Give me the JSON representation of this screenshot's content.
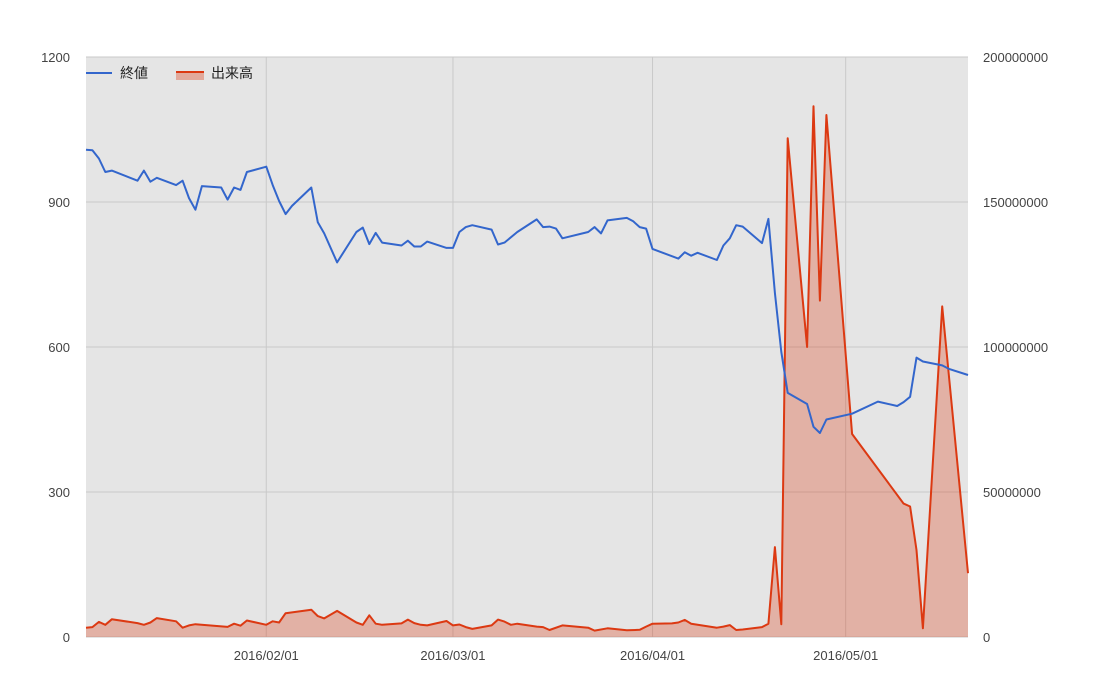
{
  "chart_data": {
    "type": "line",
    "x_axis": {
      "type": "date",
      "range": [
        "2016-01-04",
        "2016-05-20"
      ],
      "tick_labels": [
        "2016/02/01",
        "2016/03/01",
        "2016/04/01",
        "2016/05/01"
      ],
      "tick_values": [
        "2016-02-01",
        "2016-03-01",
        "2016-04-01",
        "2016-05-01"
      ],
      "grid": true
    },
    "y_axis_left": {
      "range": [
        0,
        1200
      ],
      "tick_values": [
        0,
        300,
        600,
        900,
        1200
      ],
      "tick_labels": [
        "0",
        "300",
        "600",
        "900",
        "1200"
      ],
      "grid": true
    },
    "y_axis_right": {
      "range": [
        0,
        200000000
      ],
      "tick_values": [
        0,
        50000000,
        100000000,
        150000000,
        200000000
      ],
      "tick_labels": [
        "0",
        "50000000",
        "100000000",
        "150000000",
        "200000000"
      ]
    },
    "legend": {
      "position": "top-left"
    },
    "plot_background": "#e5e5e5",
    "series": [
      {
        "name": "終値",
        "type": "line",
        "axis": "left",
        "color": "#3366cc",
        "points": [
          [
            "2016-01-04",
            1008
          ],
          [
            "2016-01-05",
            1007
          ],
          [
            "2016-01-06",
            990
          ],
          [
            "2016-01-07",
            962
          ],
          [
            "2016-01-08",
            965
          ],
          [
            "2016-01-12",
            944
          ],
          [
            "2016-01-13",
            965
          ],
          [
            "2016-01-14",
            942
          ],
          [
            "2016-01-15",
            950
          ],
          [
            "2016-01-18",
            935
          ],
          [
            "2016-01-19",
            944
          ],
          [
            "2016-01-20",
            908
          ],
          [
            "2016-01-21",
            884
          ],
          [
            "2016-01-22",
            933
          ],
          [
            "2016-01-25",
            930
          ],
          [
            "2016-01-26",
            905
          ],
          [
            "2016-01-27",
            930
          ],
          [
            "2016-01-28",
            925
          ],
          [
            "2016-01-29",
            962
          ],
          [
            "2016-02-01",
            973
          ],
          [
            "2016-02-02",
            935
          ],
          [
            "2016-02-03",
            902
          ],
          [
            "2016-02-04",
            875
          ],
          [
            "2016-02-05",
            892
          ],
          [
            "2016-02-08",
            930
          ],
          [
            "2016-02-09",
            858
          ],
          [
            "2016-02-10",
            835
          ],
          [
            "2016-02-12",
            775
          ],
          [
            "2016-02-15",
            838
          ],
          [
            "2016-02-16",
            847
          ],
          [
            "2016-02-17",
            813
          ],
          [
            "2016-02-18",
            836
          ],
          [
            "2016-02-19",
            816
          ],
          [
            "2016-02-22",
            810
          ],
          [
            "2016-02-23",
            820
          ],
          [
            "2016-02-24",
            808
          ],
          [
            "2016-02-25",
            808
          ],
          [
            "2016-02-26",
            818
          ],
          [
            "2016-02-29",
            805
          ],
          [
            "2016-03-01",
            805
          ],
          [
            "2016-03-02",
            838
          ],
          [
            "2016-03-03",
            848
          ],
          [
            "2016-03-04",
            852
          ],
          [
            "2016-03-07",
            843
          ],
          [
            "2016-03-08",
            812
          ],
          [
            "2016-03-09",
            816
          ],
          [
            "2016-03-11",
            838
          ],
          [
            "2016-03-14",
            864
          ],
          [
            "2016-03-15",
            848
          ],
          [
            "2016-03-16",
            849
          ],
          [
            "2016-03-17",
            845
          ],
          [
            "2016-03-18",
            825
          ],
          [
            "2016-03-22",
            838
          ],
          [
            "2016-03-23",
            848
          ],
          [
            "2016-03-24",
            835
          ],
          [
            "2016-03-25",
            862
          ],
          [
            "2016-03-28",
            867
          ],
          [
            "2016-03-29",
            860
          ],
          [
            "2016-03-30",
            848
          ],
          [
            "2016-03-31",
            845
          ],
          [
            "2016-04-01",
            803
          ],
          [
            "2016-04-05",
            783
          ],
          [
            "2016-04-06",
            796
          ],
          [
            "2016-04-07",
            789
          ],
          [
            "2016-04-08",
            795
          ],
          [
            "2016-04-11",
            780
          ],
          [
            "2016-04-12",
            810
          ],
          [
            "2016-04-13",
            825
          ],
          [
            "2016-04-14",
            852
          ],
          [
            "2016-04-15",
            849
          ],
          [
            "2016-04-18",
            815
          ],
          [
            "2016-04-19",
            865
          ],
          [
            "2016-04-20",
            712
          ],
          [
            "2016-04-21",
            590
          ],
          [
            "2016-04-22",
            505
          ],
          [
            "2016-04-25",
            482
          ],
          [
            "2016-04-26",
            435
          ],
          [
            "2016-04-27",
            422
          ],
          [
            "2016-04-28",
            450
          ],
          [
            "2016-05-02",
            462
          ],
          [
            "2016-05-06",
            487
          ],
          [
            "2016-05-09",
            478
          ],
          [
            "2016-05-10",
            486
          ],
          [
            "2016-05-11",
            497
          ],
          [
            "2016-05-12",
            578
          ],
          [
            "2016-05-13",
            570
          ],
          [
            "2016-05-16",
            562
          ],
          [
            "2016-05-17",
            555
          ],
          [
            "2016-05-20",
            542
          ]
        ]
      },
      {
        "name": "出来高",
        "type": "area",
        "axis": "right",
        "color": "#dc3912",
        "points": [
          [
            "2016-01-04",
            3200000
          ],
          [
            "2016-01-05",
            3400000
          ],
          [
            "2016-01-06",
            5200000
          ],
          [
            "2016-01-07",
            4200000
          ],
          [
            "2016-01-08",
            6100000
          ],
          [
            "2016-01-12",
            4800000
          ],
          [
            "2016-01-13",
            4200000
          ],
          [
            "2016-01-14",
            5000000
          ],
          [
            "2016-01-15",
            6500000
          ],
          [
            "2016-01-18",
            5400000
          ],
          [
            "2016-01-19",
            3200000
          ],
          [
            "2016-01-20",
            4000000
          ],
          [
            "2016-01-21",
            4400000
          ],
          [
            "2016-01-26",
            3500000
          ],
          [
            "2016-01-27",
            4600000
          ],
          [
            "2016-01-28",
            3900000
          ],
          [
            "2016-01-29",
            5700000
          ],
          [
            "2016-02-01",
            4200000
          ],
          [
            "2016-02-02",
            5400000
          ],
          [
            "2016-02-03",
            5000000
          ],
          [
            "2016-02-04",
            8200000
          ],
          [
            "2016-02-08",
            9400000
          ],
          [
            "2016-02-09",
            7200000
          ],
          [
            "2016-02-10",
            6400000
          ],
          [
            "2016-02-12",
            9000000
          ],
          [
            "2016-02-15",
            5000000
          ],
          [
            "2016-02-16",
            4200000
          ],
          [
            "2016-02-17",
            7500000
          ],
          [
            "2016-02-18",
            4600000
          ],
          [
            "2016-02-19",
            4200000
          ],
          [
            "2016-02-22",
            4700000
          ],
          [
            "2016-02-23",
            6000000
          ],
          [
            "2016-02-24",
            4800000
          ],
          [
            "2016-02-25",
            4200000
          ],
          [
            "2016-02-26",
            4000000
          ],
          [
            "2016-02-29",
            5500000
          ],
          [
            "2016-03-01",
            4000000
          ],
          [
            "2016-03-02",
            4300000
          ],
          [
            "2016-03-03",
            3400000
          ],
          [
            "2016-03-04",
            2800000
          ],
          [
            "2016-03-07",
            4000000
          ],
          [
            "2016-03-08",
            6000000
          ],
          [
            "2016-03-09",
            5300000
          ],
          [
            "2016-03-10",
            4200000
          ],
          [
            "2016-03-11",
            4600000
          ],
          [
            "2016-03-14",
            3600000
          ],
          [
            "2016-03-15",
            3400000
          ],
          [
            "2016-03-16",
            2400000
          ],
          [
            "2016-03-18",
            4000000
          ],
          [
            "2016-03-22",
            3200000
          ],
          [
            "2016-03-23",
            2200000
          ],
          [
            "2016-03-25",
            3000000
          ],
          [
            "2016-03-28",
            2300000
          ],
          [
            "2016-03-30",
            2500000
          ],
          [
            "2016-03-31",
            3600000
          ],
          [
            "2016-04-01",
            4600000
          ],
          [
            "2016-04-04",
            4700000
          ],
          [
            "2016-04-05",
            5000000
          ],
          [
            "2016-04-06",
            5900000
          ],
          [
            "2016-04-07",
            4600000
          ],
          [
            "2016-04-11",
            3200000
          ],
          [
            "2016-04-12",
            3600000
          ],
          [
            "2016-04-13",
            4100000
          ],
          [
            "2016-04-14",
            2400000
          ],
          [
            "2016-04-15",
            2600000
          ],
          [
            "2016-04-18",
            3400000
          ],
          [
            "2016-04-19",
            4600000
          ],
          [
            "2016-04-20",
            31000000
          ],
          [
            "2016-04-21",
            4400000
          ],
          [
            "2016-04-22",
            172000000
          ],
          [
            "2016-04-25",
            100000000
          ],
          [
            "2016-04-26",
            183000000
          ],
          [
            "2016-04-27",
            116000000
          ],
          [
            "2016-04-28",
            180000000
          ],
          [
            "2016-05-02",
            70000000
          ],
          [
            "2016-05-10",
            46000000
          ],
          [
            "2016-05-11",
            45000000
          ],
          [
            "2016-05-12",
            30000000
          ],
          [
            "2016-05-13",
            3000000
          ],
          [
            "2016-05-16",
            114000000
          ],
          [
            "2016-05-20",
            22000000
          ]
        ]
      }
    ]
  }
}
